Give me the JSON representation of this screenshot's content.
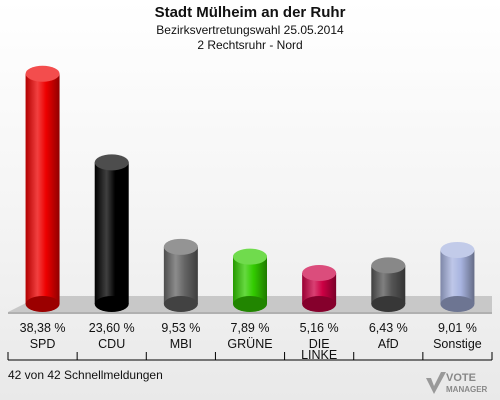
{
  "header": {
    "title": "Stadt Mülheim an der Ruhr",
    "subtitle1": "Bezirksvertretungswahl 25.05.2014",
    "subtitle2": "2 Rechtsruhr - Nord"
  },
  "footer": {
    "text": "42 von 42 Schnellmeldungen"
  },
  "logo": {
    "line1": "VOTE",
    "line2": "MANAGER"
  },
  "chart_data": {
    "type": "bar",
    "categories": [
      "SPD",
      "CDU",
      "MBI",
      "GRÜNE",
      "DIE LINKE",
      "AfD",
      "Sonstige"
    ],
    "category_lines": [
      [
        "SPD"
      ],
      [
        "CDU"
      ],
      [
        "MBI"
      ],
      [
        "GRÜNE"
      ],
      [
        "DIE",
        "LINKE"
      ],
      [
        "AfD"
      ],
      [
        "Sonstige"
      ]
    ],
    "values": [
      38.38,
      23.6,
      9.53,
      7.89,
      5.16,
      6.43,
      9.01
    ],
    "value_labels": [
      "38,38 %",
      "23,60 %",
      "9,53 %",
      "7,89 %",
      "5,16 %",
      "6,43 %",
      "9,01 %"
    ],
    "colors": [
      "#ee0000",
      "#000000",
      "#666666",
      "#33cc00",
      "#cc0044",
      "#555555",
      "#a8b4e0"
    ],
    "ylim": [
      0,
      40
    ]
  }
}
